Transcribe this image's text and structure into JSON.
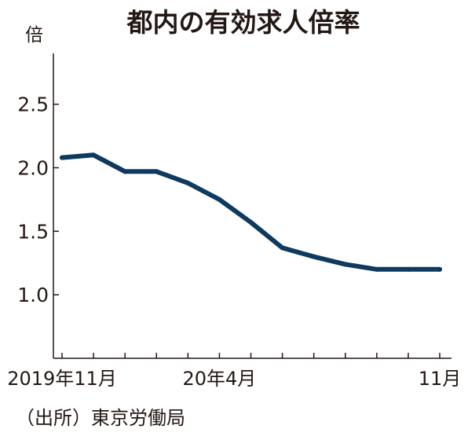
{
  "chart_data": {
    "type": "line",
    "title": "都内の有効求人倍率",
    "unit_label": "倍",
    "source": "（出所）東京労働局",
    "line_color": "#0e3a5f",
    "ylim": [
      0.5,
      2.9
    ],
    "y_ticks": [
      {
        "value": 1.0,
        "label": "1.0"
      },
      {
        "value": 1.5,
        "label": "1.5"
      },
      {
        "value": 2.0,
        "label": "2.0"
      },
      {
        "value": 2.5,
        "label": "2.5"
      }
    ],
    "x": [
      "2019-11",
      "2019-12",
      "2020-01",
      "2020-02",
      "2020-03",
      "2020-04",
      "2020-05",
      "2020-06",
      "2020-07",
      "2020-08",
      "2020-09",
      "2020-10",
      "2020-11"
    ],
    "x_tick_labels": [
      {
        "index": 0,
        "label": "2019年11月"
      },
      {
        "index": 5,
        "label": "20年4月"
      },
      {
        "index": 12,
        "label": "11月"
      }
    ],
    "series": [
      {
        "values": [
          2.08,
          2.1,
          1.97,
          1.97,
          1.88,
          1.75,
          1.57,
          1.37,
          1.3,
          1.24,
          1.2,
          1.2,
          1.2
        ]
      }
    ],
    "grid": false
  }
}
